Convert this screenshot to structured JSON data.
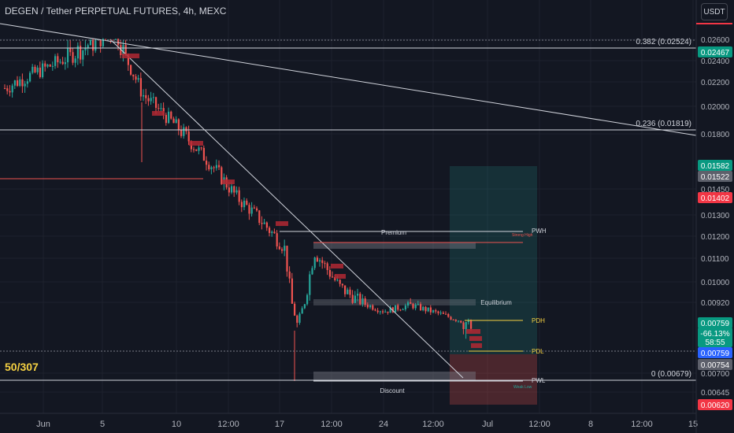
{
  "header": {
    "symbol_title": "DEGEN / Tether PERPETUAL FUTURES, 4h, MEXC",
    "currency_button": "USDT"
  },
  "counter": "50/307",
  "colors": {
    "background": "#131722",
    "up": "#26a69a",
    "down": "#ef5350",
    "grid": "#1e222d",
    "line": "#d1d4dc",
    "green_badge": "#089981",
    "red_badge": "#f23645",
    "gray_badge": "#5d606b",
    "blue_badge": "#2962ff",
    "yellow": "#f5d142"
  },
  "chart_data": {
    "type": "candlestick",
    "x_ticks": [
      "Jun",
      "5",
      "10",
      "12:00",
      "17",
      "12:00",
      "24",
      "12:00",
      "Jul",
      "12:00",
      "8",
      "12:00",
      "15"
    ],
    "y_ticks": [
      "0.02600",
      "0.02400",
      "0.02200",
      "0.02000",
      "0.01800",
      "0.01450",
      "0.01300",
      "0.01200",
      "0.01100",
      "0.01000",
      "0.00920",
      "0.00700",
      "0.00645"
    ],
    "price_badges": [
      {
        "label": "0.02467",
        "value": 0.02467,
        "color": "green"
      },
      {
        "label": "0.01582",
        "value": 0.01582,
        "color": "green"
      },
      {
        "label": "0.01522",
        "value": 0.01522,
        "color": "gray"
      },
      {
        "label": "0.01402",
        "value": 0.01402,
        "color": "red"
      },
      {
        "label": "0.00759",
        "value": 0.00759,
        "color": "green"
      },
      {
        "label": "-66.13%",
        "value": 0.00759,
        "color": "green"
      },
      {
        "label": "58:55",
        "value": 0.00759,
        "color": "green"
      },
      {
        "label": "0.00759",
        "value": 0.00759,
        "color": "blue"
      },
      {
        "label": "0.00754",
        "value": 0.00754,
        "color": "gray"
      },
      {
        "label": "0.00620",
        "value": 0.0062,
        "color": "red"
      }
    ],
    "fib_levels": [
      {
        "label": "0.382 (0.02524)",
        "value": 0.02524
      },
      {
        "label": "0.236 (0.01819)",
        "value": 0.01819
      },
      {
        "label": "0 (0.00679)",
        "value": 0.00679
      }
    ],
    "zone_labels": {
      "premium": "Premium",
      "equilibrium": "Equilibrium",
      "discount": "Discount",
      "pwh": "PWH",
      "pdh": "PDH",
      "pdl": "PDL",
      "pwl": "PWL",
      "strong_high": "Strong High",
      "weak_low": "Weak Low"
    },
    "series_description": "Price declines from ~0.0262 near Jun 5 to ~0.0075 at the end of June",
    "trend": [
      {
        "x": "Jun 1",
        "close": 0.0215
      },
      {
        "x": "Jun 5",
        "close": 0.0262
      },
      {
        "x": "Jun 8",
        "close": 0.021
      },
      {
        "x": "Jun 12",
        "close": 0.0175
      },
      {
        "x": "Jun 15",
        "close": 0.014
      },
      {
        "x": "Jun 18",
        "close": 0.0115
      },
      {
        "x": "Jun 19",
        "close": 0.0075
      },
      {
        "x": "Jun 20",
        "close": 0.0113
      },
      {
        "x": "Jun 22",
        "close": 0.0098
      },
      {
        "x": "Jun 25",
        "close": 0.0085
      },
      {
        "x": "Jun 27",
        "close": 0.009
      },
      {
        "x": "Jun 29",
        "close": 0.0075
      }
    ]
  }
}
